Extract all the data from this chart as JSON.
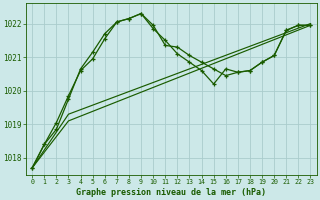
{
  "title": "Graphe pression niveau de la mer (hPa)",
  "background_color": "#cce8e8",
  "grid_color": "#aacccc",
  "line_color": "#1a5c00",
  "marker_color": "#1a5c00",
  "xlim": [
    -0.5,
    23.5
  ],
  "ylim": [
    1017.5,
    1022.6
  ],
  "yticks": [
    1018,
    1019,
    1020,
    1021,
    1022
  ],
  "xticks": [
    0,
    1,
    2,
    3,
    4,
    5,
    6,
    7,
    8,
    9,
    10,
    11,
    12,
    13,
    14,
    15,
    16,
    17,
    18,
    19,
    20,
    21,
    22,
    23
  ],
  "series": [
    {
      "x": [
        0,
        1,
        2,
        3,
        4,
        5,
        6,
        7,
        8,
        9,
        10,
        11,
        12,
        13,
        14,
        15,
        16,
        17,
        18,
        19,
        20,
        21,
        22,
        23
      ],
      "y": [
        1017.7,
        1018.4,
        1018.85,
        1019.75,
        1020.65,
        1021.15,
        1021.7,
        1022.05,
        1022.15,
        1022.3,
        1021.85,
        1021.5,
        1021.1,
        1020.85,
        1020.6,
        1020.2,
        1020.65,
        1020.55,
        1020.6,
        1020.85,
        1021.05,
        1021.8,
        1021.95,
        1021.95
      ],
      "has_markers": true
    },
    {
      "x": [
        0,
        1,
        2,
        3,
        4,
        5,
        6,
        7,
        8,
        9,
        10,
        11,
        12,
        13,
        14,
        15,
        16,
        17,
        18,
        19,
        20,
        21,
        22,
        23
      ],
      "y": [
        1017.7,
        1018.4,
        1019.05,
        1019.85,
        1020.6,
        1020.95,
        1021.55,
        1022.05,
        1022.15,
        1022.3,
        1021.95,
        1021.35,
        1021.3,
        1021.05,
        1020.85,
        1020.65,
        1020.45,
        1020.55,
        1020.6,
        1020.85,
        1021.05,
        1021.8,
        1021.95,
        1021.95
      ],
      "has_markers": true
    },
    {
      "x": [
        0,
        3,
        23
      ],
      "y": [
        1017.7,
        1019.1,
        1021.95
      ],
      "has_markers": false
    },
    {
      "x": [
        0,
        3,
        23
      ],
      "y": [
        1017.7,
        1019.3,
        1022.0
      ],
      "has_markers": false
    }
  ]
}
